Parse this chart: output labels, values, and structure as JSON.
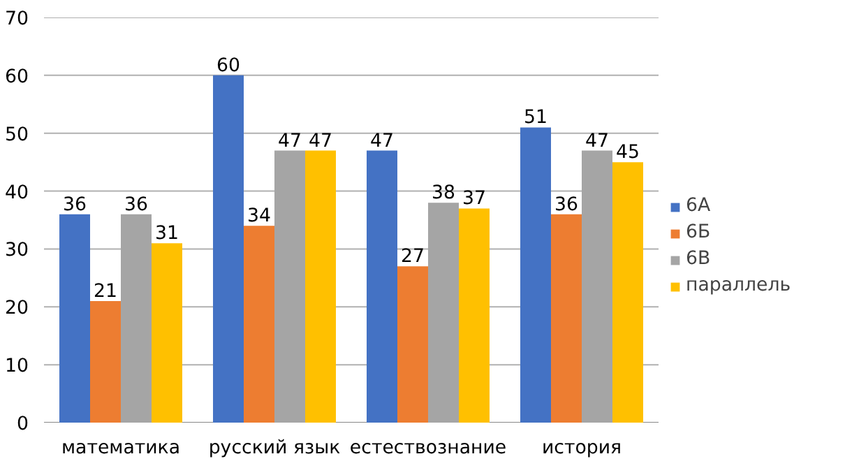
{
  "chart_data": {
    "type": "bar",
    "categories": [
      "математика",
      "русский язык",
      "естествознание",
      "история"
    ],
    "series": [
      {
        "name": "6А",
        "color": "#4472c4",
        "values": [
          36,
          60,
          47,
          51
        ]
      },
      {
        "name": "6Б",
        "color": "#ed7d31",
        "values": [
          21,
          34,
          27,
          36
        ]
      },
      {
        "name": "6В",
        "color": "#a5a5a5",
        "values": [
          36,
          47,
          38,
          47
        ]
      },
      {
        "name": "параллель",
        "color": "#ffc000",
        "values": [
          31,
          47,
          37,
          45
        ]
      }
    ],
    "ylim": [
      0,
      70
    ],
    "yticks": [
      0,
      10,
      20,
      30,
      40,
      50,
      60,
      70
    ],
    "grid": "y",
    "legend": "right",
    "data_labels": true
  }
}
